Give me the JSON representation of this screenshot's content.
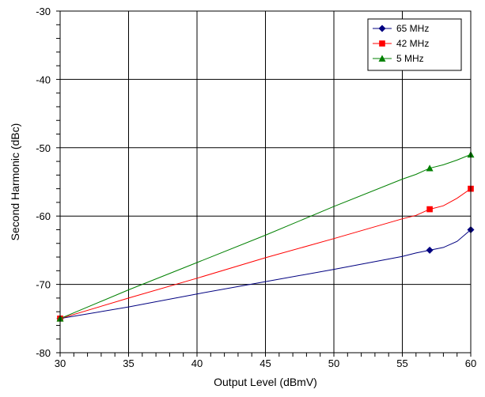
{
  "chart_data": {
    "type": "line",
    "title": "",
    "xlabel": "Output Level (dBmV)",
    "ylabel": "Second Harmonic (dBc)",
    "xlim": [
      30,
      60
    ],
    "ylim": [
      -80,
      -30
    ],
    "xticks": [
      "30",
      "35",
      "40",
      "45",
      "50",
      "55",
      "60"
    ],
    "yticks": [
      "-30",
      "-40",
      "-50",
      "-60",
      "-70",
      "-80"
    ],
    "x_minor_step": 1,
    "y_minor_step": 2,
    "grid": true,
    "legend_position": "top-right",
    "series": [
      {
        "name": "65 MHz",
        "color": "#000080",
        "marker": "diamond",
        "points": [
          [
            30,
            -75
          ],
          [
            35,
            -73.3
          ],
          [
            40,
            -71.4
          ],
          [
            45,
            -69.6
          ],
          [
            50,
            -67.8
          ],
          [
            55,
            -65.9
          ],
          [
            56,
            -65.4
          ],
          [
            57,
            -65
          ],
          [
            58,
            -64.6
          ],
          [
            59,
            -63.7
          ],
          [
            60,
            -62
          ]
        ],
        "marker_points": [
          [
            30,
            -75
          ],
          [
            57,
            -65
          ],
          [
            60,
            -62
          ]
        ]
      },
      {
        "name": "42 MHz",
        "color": "#ff0000",
        "marker": "square",
        "points": [
          [
            30,
            -75
          ],
          [
            35,
            -72
          ],
          [
            40,
            -69.1
          ],
          [
            45,
            -66.1
          ],
          [
            50,
            -63.3
          ],
          [
            55,
            -60.4
          ],
          [
            56,
            -59.9
          ],
          [
            57,
            -59
          ],
          [
            58,
            -58.5
          ],
          [
            59,
            -57.4
          ],
          [
            60,
            -56
          ]
        ],
        "marker_points": [
          [
            30,
            -75
          ],
          [
            57,
            -59
          ],
          [
            60,
            -56
          ]
        ]
      },
      {
        "name": "5 MHz",
        "color": "#008000",
        "marker": "triangle",
        "points": [
          [
            30,
            -75
          ],
          [
            35,
            -70.8
          ],
          [
            40,
            -66.8
          ],
          [
            45,
            -62.8
          ],
          [
            50,
            -58.6
          ],
          [
            55,
            -54.6
          ],
          [
            56,
            -53.9
          ],
          [
            57,
            -53
          ],
          [
            58,
            -52.5
          ],
          [
            59,
            -51.8
          ],
          [
            60,
            -51
          ]
        ],
        "marker_points": [
          [
            30,
            -75
          ],
          [
            57,
            -53
          ],
          [
            60,
            -51
          ]
        ]
      }
    ]
  }
}
